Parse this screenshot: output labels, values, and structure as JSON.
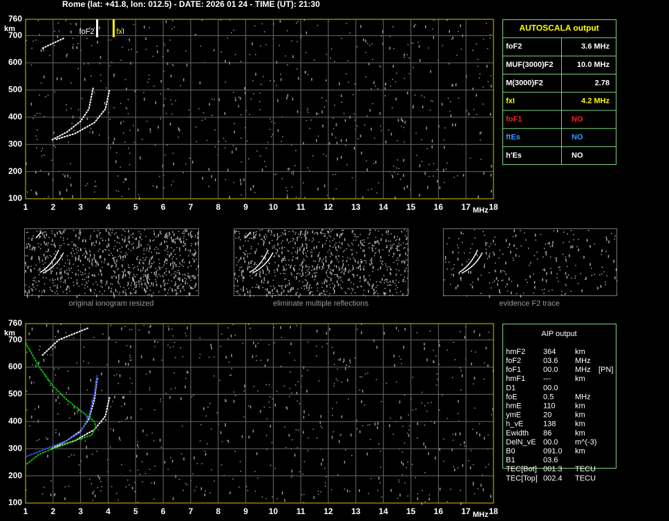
{
  "header": {
    "title": "Rome (lat: +41.8, lon: 012.5) - DATE: 2026 01 24 - TIME (UT): 21:30"
  },
  "chart_data": [
    {
      "type": "line",
      "x_label": "MHz",
      "y_label": "km",
      "xlim": [
        1,
        18
      ],
      "ylim": [
        100,
        760
      ],
      "xticks": [
        1,
        2,
        3,
        4,
        5,
        6,
        7,
        8,
        9,
        10,
        11,
        12,
        13,
        14,
        15,
        16,
        17,
        18
      ],
      "yticks": [
        100,
        200,
        300,
        400,
        500,
        600,
        700,
        760
      ],
      "grid": true,
      "series": [
        {
          "color": "#ffffff",
          "x": [
            1.95,
            2.5,
            3.0,
            3.3,
            3.46
          ],
          "values": [
            316,
            345,
            385,
            430,
            510
          ]
        },
        {
          "color": "#ffffff",
          "x": [
            2.1,
            2.8,
            3.5,
            3.9,
            4.05
          ],
          "values": [
            318,
            340,
            380,
            430,
            500
          ]
        },
        {
          "color": "#ffffff",
          "x": [
            1.6,
            2.0,
            2.4
          ],
          "values": [
            653,
            672,
            691
          ]
        }
      ],
      "markers": [
        {
          "name": "foF2",
          "x": 3.6,
          "color": "#ffffff"
        },
        {
          "name": "fxI",
          "x": 4.2,
          "color": "#ffff00"
        }
      ]
    },
    {
      "type": "line",
      "x_label": "MHz",
      "y_label": "km",
      "xlim": [
        1,
        18
      ],
      "ylim": [
        100,
        760
      ],
      "xticks": [
        1,
        2,
        3,
        4,
        5,
        6,
        7,
        8,
        9,
        10,
        11,
        12,
        13,
        14,
        15,
        16,
        17,
        18
      ],
      "yticks": [
        100,
        200,
        300,
        400,
        500,
        600,
        700,
        760
      ],
      "grid": true,
      "series": [
        {
          "color": "#ffffff",
          "x": [
            1.95,
            2.5,
            3.0,
            3.3,
            3.5,
            3.6
          ],
          "values": [
            300,
            330,
            365,
            410,
            480,
            560
          ]
        },
        {
          "color": "#ffffff",
          "x": [
            2.1,
            2.8,
            3.5,
            3.9,
            4.05
          ],
          "values": [
            305,
            330,
            370,
            420,
            490
          ]
        },
        {
          "color": "#ffffff",
          "x": [
            1.6,
            2.2,
            3.3
          ],
          "values": [
            643,
            700,
            745
          ]
        },
        {
          "color": "#00cc00",
          "x": [
            1.0,
            1.5,
            2.0,
            2.5,
            3.0,
            3.5,
            3.55,
            3.4,
            2.5,
            1.5,
            1.0
          ],
          "values": [
            690,
            600,
            530,
            480,
            440,
            400,
            380,
            350,
            320,
            280,
            240
          ]
        },
        {
          "color": "#3355ff",
          "x": [
            1.0,
            1.5,
            2.0,
            2.5,
            3.0,
            3.3,
            3.5,
            3.6
          ],
          "values": [
            270,
            290,
            310,
            330,
            360,
            420,
            500,
            570
          ]
        }
      ]
    }
  ],
  "thumbnails": [
    "original ionogram resized",
    "eliminate multiple reflections",
    "evidence F2 trace"
  ],
  "autoscala": {
    "title": "AUTOSCALA output",
    "rows": [
      {
        "label": "foF2",
        "value": "3.6 MHz",
        "color": "#ffffff"
      },
      {
        "label": "MUF(3000)F2",
        "value": "10.0 MHz",
        "color": "#ffffff"
      },
      {
        "label": "M(3000)F2",
        "value": "2.78",
        "color": "#ffffff"
      },
      {
        "label": "fxI",
        "value": "4.2 MHz",
        "color": "#ffff00"
      },
      {
        "label": "foF1",
        "value": "NO",
        "color": "#ff2020"
      },
      {
        "label": "ftEs",
        "value": "NO",
        "color": "#3399ff"
      },
      {
        "label": "h'Es",
        "value": "NO",
        "color": "#ffffff"
      }
    ]
  },
  "aip": {
    "title": "AIP output",
    "rows": [
      [
        "hmF2",
        "364",
        "km"
      ],
      [
        "foF2",
        "03.6",
        "MHz"
      ],
      [
        "foF1",
        "00.0",
        "MHz",
        "[PN]"
      ],
      [
        "hmF1",
        "---",
        "km"
      ],
      [
        "D1",
        "00.0"
      ],
      [
        "foE",
        "0.5",
        "MHz"
      ],
      [
        "hmE",
        "110",
        "km"
      ],
      [
        "ymE",
        "20",
        "km"
      ],
      [
        "h_vE",
        "138",
        "km"
      ],
      [
        "Ewidth",
        "86",
        "km"
      ],
      [
        "DelN_vE",
        "00.0",
        "m^(-3)"
      ],
      [
        "B0",
        "091.0",
        "km"
      ],
      [
        "B1",
        "03.6"
      ],
      [
        "TEC[Bot]",
        "001.3",
        "TECU"
      ],
      [
        "TEC[Top]",
        "002.4",
        "TECU"
      ]
    ]
  }
}
